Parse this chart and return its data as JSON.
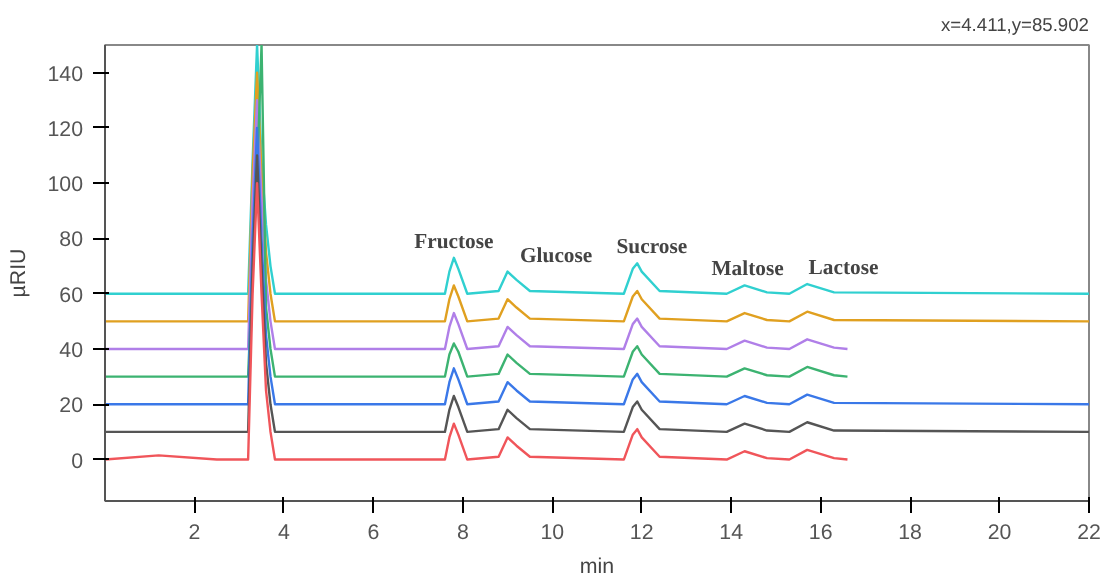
{
  "chart_data": {
    "type": "line",
    "xlabel": "min",
    "ylabel": "µRIU",
    "xlim": [
      0,
      22
    ],
    "ylim": [
      -15,
      150
    ],
    "xticks": [
      2,
      4,
      6,
      8,
      10,
      12,
      14,
      16,
      18,
      20,
      22
    ],
    "yticks": [
      0,
      20,
      40,
      60,
      80,
      100,
      120,
      140
    ],
    "grid": false,
    "marker": "none",
    "line_style": "solid",
    "series": [
      {
        "color": "#f0555a",
        "x": [
          0,
          1.2,
          2.5,
          3.2,
          3.3,
          3.4,
          3.5,
          3.6,
          3.7,
          3.8,
          7.6,
          7.7,
          7.8,
          7.9,
          8.1,
          8.8,
          9.0,
          9.2,
          9.5,
          11.6,
          11.8,
          11.9,
          12.0,
          12.4,
          13.9,
          14.3,
          14.8,
          15.3,
          15.7,
          16.3,
          16.6
        ],
        "values": [
          0,
          1.5,
          0,
          0,
          60,
          100,
          60,
          25,
          10,
          0,
          0,
          8,
          13,
          9,
          0,
          1,
          8,
          5,
          1,
          0,
          9,
          11,
          8,
          1,
          0,
          3,
          0.5,
          0,
          3.5,
          0.5,
          0
        ]
      },
      {
        "color": "#555555",
        "x": [
          0,
          3.2,
          3.3,
          3.4,
          3.5,
          3.6,
          3.7,
          3.8,
          7.6,
          7.7,
          7.8,
          7.9,
          8.1,
          8.8,
          9.0,
          9.2,
          9.5,
          11.6,
          11.8,
          11.9,
          12.0,
          12.4,
          13.9,
          14.3,
          14.8,
          15.3,
          15.7,
          16.3,
          22
        ],
        "values": [
          10,
          10,
          70,
          110,
          70,
          35,
          20,
          10,
          10,
          18,
          23,
          19,
          10,
          11,
          18,
          15,
          11,
          10,
          19,
          21,
          18,
          11,
          10,
          13,
          10.5,
          10,
          13.5,
          10.5,
          10
        ]
      },
      {
        "color": "#3a78e8",
        "x": [
          0,
          3.2,
          3.3,
          3.4,
          3.5,
          3.6,
          3.7,
          3.8,
          7.6,
          7.7,
          7.8,
          7.9,
          8.1,
          8.8,
          9.0,
          9.2,
          9.5,
          11.6,
          11.8,
          11.9,
          12.0,
          12.4,
          13.9,
          14.3,
          14.8,
          15.3,
          15.7,
          16.3,
          22
        ],
        "values": [
          20,
          20,
          80,
          120,
          80,
          45,
          30,
          20,
          20,
          28,
          33,
          29,
          20,
          21,
          28,
          25,
          21,
          20,
          29,
          31,
          28,
          21,
          20,
          23,
          20.5,
          20,
          23.5,
          20.5,
          20
        ]
      },
      {
        "color": "#3cb371",
        "x": [
          0,
          3.2,
          3.3,
          3.4,
          3.5,
          3.6,
          3.7,
          3.8,
          7.6,
          7.7,
          7.8,
          7.9,
          8.1,
          8.8,
          9.0,
          9.2,
          9.5,
          11.6,
          11.8,
          11.9,
          12.0,
          12.4,
          13.9,
          14.3,
          14.8,
          15.3,
          15.7,
          16.3,
          16.6
        ],
        "values": [
          30,
          30,
          70,
          102,
          150,
          55,
          40,
          30,
          30,
          38,
          42,
          39,
          30,
          31,
          38,
          35,
          31,
          30,
          39,
          41,
          38,
          31,
          30,
          33,
          30.5,
          30,
          33.5,
          30.5,
          30
        ]
      },
      {
        "color": "#b07fe8",
        "x": [
          0,
          3.2,
          3.3,
          3.4,
          3.5,
          3.6,
          3.7,
          3.8,
          7.6,
          7.7,
          7.8,
          7.9,
          8.1,
          8.8,
          9.0,
          9.2,
          9.5,
          11.6,
          11.8,
          11.9,
          12.0,
          12.4,
          13.9,
          14.3,
          14.8,
          15.3,
          15.7,
          16.3,
          16.6
        ],
        "values": [
          40,
          40,
          94,
          130,
          94,
          65,
          50,
          40,
          40,
          48,
          53,
          49,
          40,
          41,
          48,
          45,
          41,
          40,
          49,
          51,
          48,
          41,
          40,
          43,
          40.5,
          40,
          43.5,
          40.5,
          40
        ]
      },
      {
        "color": "#e0a020",
        "x": [
          0,
          3.2,
          3.3,
          3.4,
          3.5,
          3.6,
          3.7,
          3.8,
          7.6,
          7.7,
          7.8,
          7.9,
          8.1,
          8.8,
          9.0,
          9.2,
          9.5,
          11.6,
          11.8,
          11.9,
          12.0,
          12.4,
          13.9,
          14.3,
          14.8,
          15.3,
          15.7,
          16.3,
          22
        ],
        "values": [
          50,
          50,
          104,
          140,
          104,
          75,
          60,
          50,
          50,
          58,
          63,
          59,
          50,
          51,
          58,
          55,
          51,
          50,
          59,
          61,
          58,
          51,
          50,
          53,
          50.5,
          50,
          53.5,
          50.5,
          50
        ]
      },
      {
        "color": "#30d0d0",
        "x": [
          0,
          3.2,
          3.3,
          3.4,
          3.5,
          3.6,
          3.7,
          3.8,
          7.6,
          7.7,
          7.8,
          7.9,
          8.1,
          8.8,
          9.0,
          9.2,
          9.5,
          11.6,
          11.8,
          11.9,
          12.0,
          12.4,
          13.9,
          14.3,
          14.8,
          15.3,
          15.7,
          16.3,
          22
        ],
        "values": [
          60,
          60,
          108,
          150,
          108,
          85,
          70,
          60,
          60,
          68,
          73,
          69,
          60,
          61,
          68,
          65,
          61,
          60,
          69,
          71,
          68,
          61,
          60,
          63,
          60.5,
          60,
          63.5,
          60.5,
          60
        ]
      }
    ],
    "annotations": [
      {
        "text": "Fructose",
        "x": 7.8,
        "y": 73
      },
      {
        "text": "Glucose",
        "x": 9.0,
        "y": 68
      },
      {
        "text": "Sucrose",
        "x": 11.9,
        "y": 71
      },
      {
        "text": "Maltose",
        "x": 14.3,
        "y": 63
      },
      {
        "text": "Lactose",
        "x": 15.7,
        "y": 63.5
      },
      "x=4.411,y=85.902"
    ]
  }
}
